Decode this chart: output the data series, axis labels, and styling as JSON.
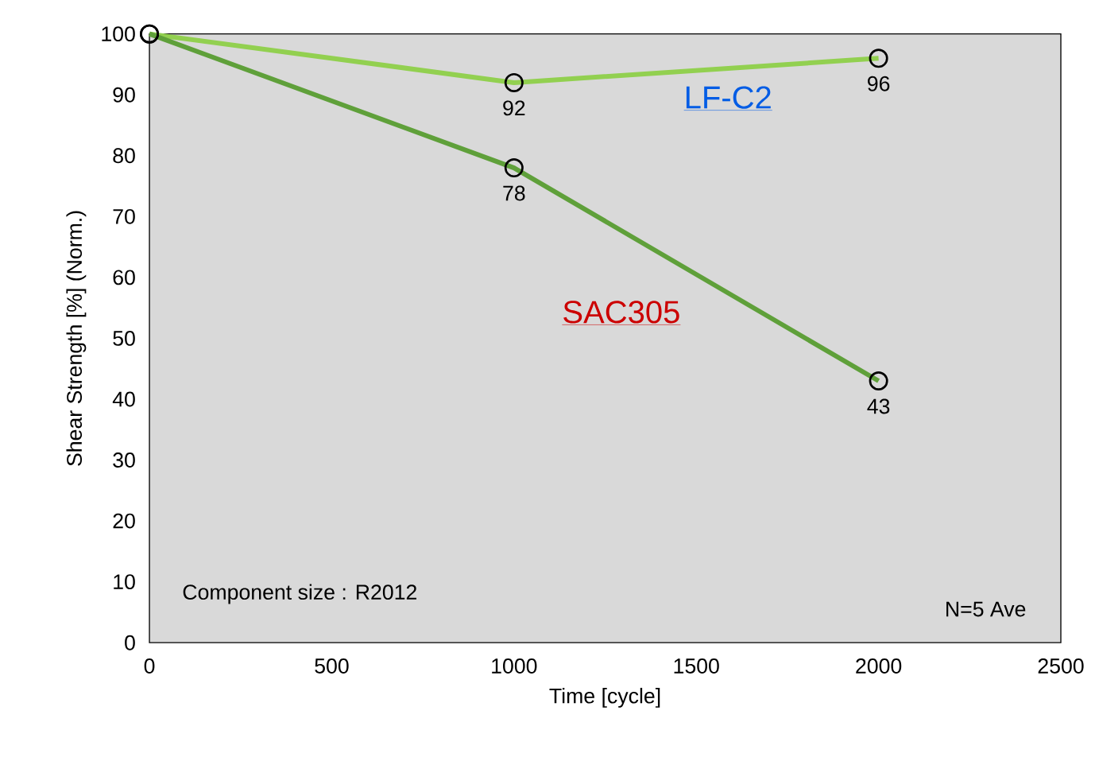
{
  "chart_data": {
    "type": "line",
    "xlabel": "Time [cycle]",
    "ylabel": "Shear Strength [%] (Norm.)",
    "x": [
      0,
      1000,
      2000
    ],
    "series": [
      {
        "name": "LF-C2",
        "color": "#92d050",
        "values": [
          100,
          92,
          96
        ],
        "value_labels": [
          null,
          "92",
          "96"
        ]
      },
      {
        "name": "SAC305",
        "color": "#5fa03a",
        "values": [
          100,
          78,
          43
        ],
        "value_labels": [
          null,
          "78",
          "43"
        ]
      }
    ],
    "xlim": [
      0,
      2500
    ],
    "xticks": [
      0,
      500,
      1000,
      1500,
      2000,
      2500
    ],
    "ylim": [
      0,
      100
    ],
    "yticks": [
      0,
      10,
      20,
      30,
      40,
      50,
      60,
      70,
      80,
      90,
      100
    ],
    "grid": false,
    "legend": false,
    "marker": "circle",
    "line_style": "solid",
    "annotations": [
      "Component size : R2012",
      "N=5 Ave"
    ]
  }
}
